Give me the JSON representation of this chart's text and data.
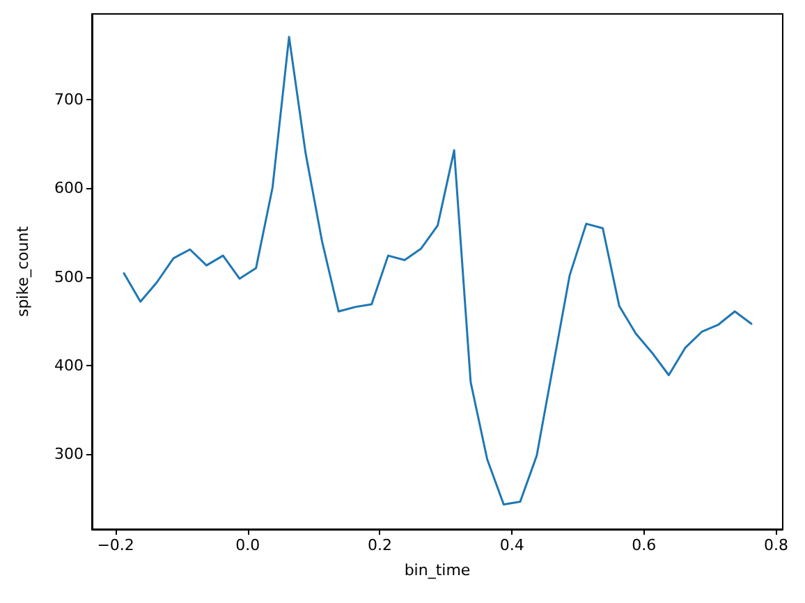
{
  "chart_data": {
    "type": "line",
    "xlabel": "bin_time",
    "ylabel": "spike_count",
    "x": [
      -0.1875,
      -0.1625,
      -0.1375,
      -0.1125,
      -0.0875,
      -0.0625,
      -0.0375,
      -0.0125,
      0.0125,
      0.0375,
      0.0625,
      0.0875,
      0.1125,
      0.1375,
      0.1625,
      0.1875,
      0.2125,
      0.2375,
      0.2625,
      0.2875,
      0.3125,
      0.3375,
      0.3625,
      0.3875,
      0.4125,
      0.4375,
      0.4625,
      0.4875,
      0.5125,
      0.5375,
      0.5625,
      0.5875,
      0.6125,
      0.6375,
      0.6625,
      0.6875,
      0.7125,
      0.7375,
      0.7625
    ],
    "values": [
      504,
      472,
      494,
      521,
      531,
      513,
      524,
      498,
      510,
      601,
      771,
      640,
      540,
      461,
      466,
      469,
      524,
      519,
      532,
      558,
      643,
      381,
      294,
      243,
      246,
      298,
      400,
      502,
      560,
      555,
      467,
      436,
      414,
      389,
      420,
      438,
      446,
      461,
      447
    ],
    "color": "#1f77b4",
    "xlim": [
      -0.236,
      0.81
    ],
    "ylim": [
      215,
      797
    ],
    "xticks": [
      {
        "value": -0.2,
        "label": "−0.2"
      },
      {
        "value": 0,
        "label": "0.0"
      },
      0.2,
      0.4,
      0.6,
      0.8
    ],
    "yticks": [
      300,
      400,
      500,
      600,
      700
    ]
  }
}
